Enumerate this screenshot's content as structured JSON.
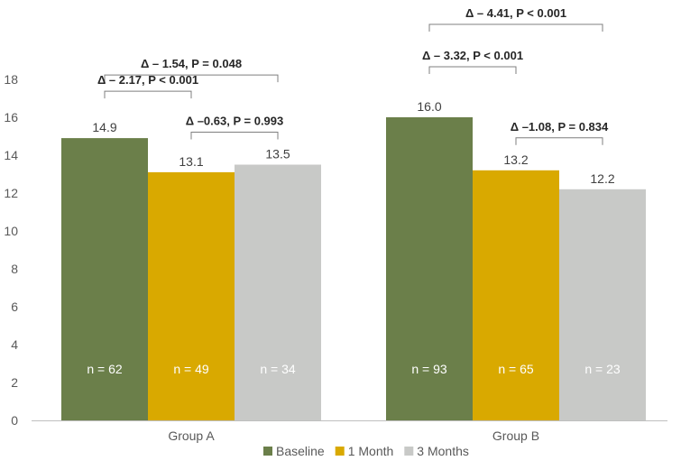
{
  "chart_data": {
    "type": "bar",
    "categories": [
      "Group A",
      "Group B"
    ],
    "series": [
      {
        "name": "Baseline",
        "values": [
          14.9,
          16.0
        ],
        "labels": [
          "14.9",
          "16.0"
        ],
        "n_labels": [
          "n = 62",
          "n = 93"
        ],
        "color": "#6b7f4a"
      },
      {
        "name": "1 Month",
        "values": [
          13.1,
          13.2
        ],
        "labels": [
          "13.1",
          "13.2"
        ],
        "n_labels": [
          "n = 49",
          "n = 65"
        ],
        "color": "#d9a900"
      },
      {
        "name": "3 Months",
        "values": [
          13.5,
          12.2
        ],
        "labels": [
          "13.5",
          "12.2"
        ],
        "n_labels": [
          "n = 34",
          "n = 23"
        ],
        "color": "#c8c9c7"
      }
    ],
    "ylim": [
      0,
      18
    ],
    "yticks": [
      "0",
      "2",
      "4",
      "6",
      "8",
      "10",
      "12",
      "14",
      "16",
      "18"
    ],
    "ytick_values": [
      0,
      2,
      4,
      6,
      8,
      10,
      12,
      14,
      16,
      18
    ],
    "grid": false,
    "legend_position": "bottom",
    "annotations": [
      {
        "group": 0,
        "from": 0,
        "to": 2,
        "text": "Δ – 1.54, P = 0.048"
      },
      {
        "group": 0,
        "from": 0,
        "to": 1,
        "text": "Δ – 2.17, P < 0.001"
      },
      {
        "group": 0,
        "from": 1,
        "to": 2,
        "text": "Δ –0.63, P = 0.993"
      },
      {
        "group": 1,
        "from": 0,
        "to": 2,
        "text": "Δ – 4.41, P < 0.001"
      },
      {
        "group": 1,
        "from": 0,
        "to": 1,
        "text": "Δ – 3.32, P < 0.001"
      },
      {
        "group": 1,
        "from": 1,
        "to": 2,
        "text": "Δ –1.08, P = 0.834"
      }
    ]
  }
}
